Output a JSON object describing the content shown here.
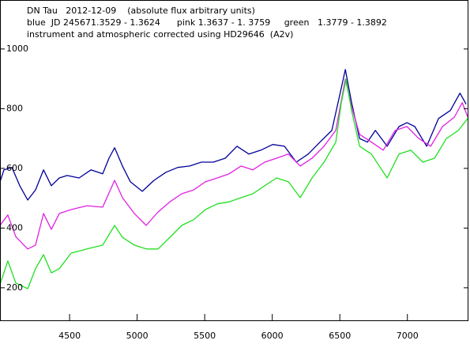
{
  "chart_data": {
    "type": "line",
    "title_lines": [
      "DN Tau   2012-12-09    (absolute flux arbitrary units)",
      "blue  JD 245671.3529 - 1.3624      pink 1.3637 - 1. 3759     green   1.3779 - 1.3892",
      "instrument and atmospheric corrected using HD29646  (A2v)"
    ],
    "xlim": [
      3985,
      7440
    ],
    "ylim": [
      91,
      1164
    ],
    "xticks": [
      4500,
      5000,
      5500,
      6000,
      6500,
      7000
    ],
    "yticks": [
      200,
      400,
      600,
      800,
      1000
    ],
    "series": [
      {
        "name": "blue",
        "color": "#00009a",
        "x": [
          3985,
          4014,
          4073,
          4131,
          4190,
          4248,
          4307,
          4365,
          4424,
          4482,
          4570,
          4658,
          4745,
          4792,
          4833,
          4891,
          4950,
          5038,
          5125,
          5213,
          5301,
          5389,
          5476,
          5564,
          5652,
          5739,
          5827,
          5915,
          6003,
          6090,
          6178,
          6266,
          6353,
          6441,
          6500,
          6541,
          6587,
          6646,
          6704,
          6763,
          6850,
          6938,
          6997,
          7055,
          7143,
          7231,
          7318,
          7389,
          7435
        ],
        "values": [
          555,
          595,
          603,
          542,
          494,
          528,
          595,
          542,
          568,
          576,
          568,
          595,
          582,
          634,
          669,
          608,
          555,
          523,
          560,
          587,
          603,
          608,
          621,
          621,
          634,
          674,
          648,
          661,
          680,
          674,
          621,
          648,
          688,
          727,
          847,
          931,
          820,
          700,
          688,
          727,
          674,
          740,
          753,
          740,
          674,
          767,
          794,
          852,
          815
        ]
      },
      {
        "name": "pink",
        "color": "#e020e0",
        "x": [
          3985,
          4043,
          4102,
          4190,
          4248,
          4307,
          4365,
          4424,
          4511,
          4628,
          4745,
          4833,
          4891,
          4979,
          5067,
          5155,
          5242,
          5330,
          5418,
          5505,
          5593,
          5681,
          5769,
          5856,
          5944,
          6032,
          6120,
          6207,
          6295,
          6383,
          6470,
          6541,
          6587,
          6646,
          6734,
          6821,
          6909,
          6997,
          7084,
          7172,
          7260,
          7348,
          7406,
          7447
        ],
        "values": [
          409,
          444,
          371,
          330,
          343,
          449,
          396,
          449,
          462,
          475,
          470,
          560,
          502,
          449,
          409,
          454,
          488,
          515,
          528,
          555,
          568,
          582,
          608,
          595,
          621,
          634,
          648,
          608,
          634,
          674,
          727,
          899,
          807,
          714,
          688,
          661,
          727,
          740,
          700,
          674,
          740,
          772,
          820,
          772
        ]
      },
      {
        "name": "green",
        "color": "#20e020",
        "x": [
          3985,
          4043,
          4102,
          4190,
          4248,
          4307,
          4365,
          4424,
          4511,
          4628,
          4745,
          4833,
          4891,
          4979,
          5067,
          5155,
          5242,
          5330,
          5418,
          5505,
          5593,
          5681,
          5769,
          5856,
          5944,
          6032,
          6120,
          6207,
          6295,
          6383,
          6470,
          6511,
          6546,
          6587,
          6646,
          6734,
          6850,
          6938,
          7026,
          7114,
          7201,
          7289,
          7377,
          7447
        ],
        "values": [
          211,
          290,
          216,
          197,
          264,
          311,
          250,
          264,
          316,
          330,
          343,
          409,
          369,
          343,
          330,
          330,
          369,
          409,
          428,
          462,
          481,
          488,
          502,
          515,
          542,
          568,
          555,
          502,
          568,
          621,
          688,
          820,
          899,
          794,
          674,
          648,
          568,
          648,
          661,
          621,
          634,
          700,
          727,
          767
        ]
      }
    ]
  }
}
